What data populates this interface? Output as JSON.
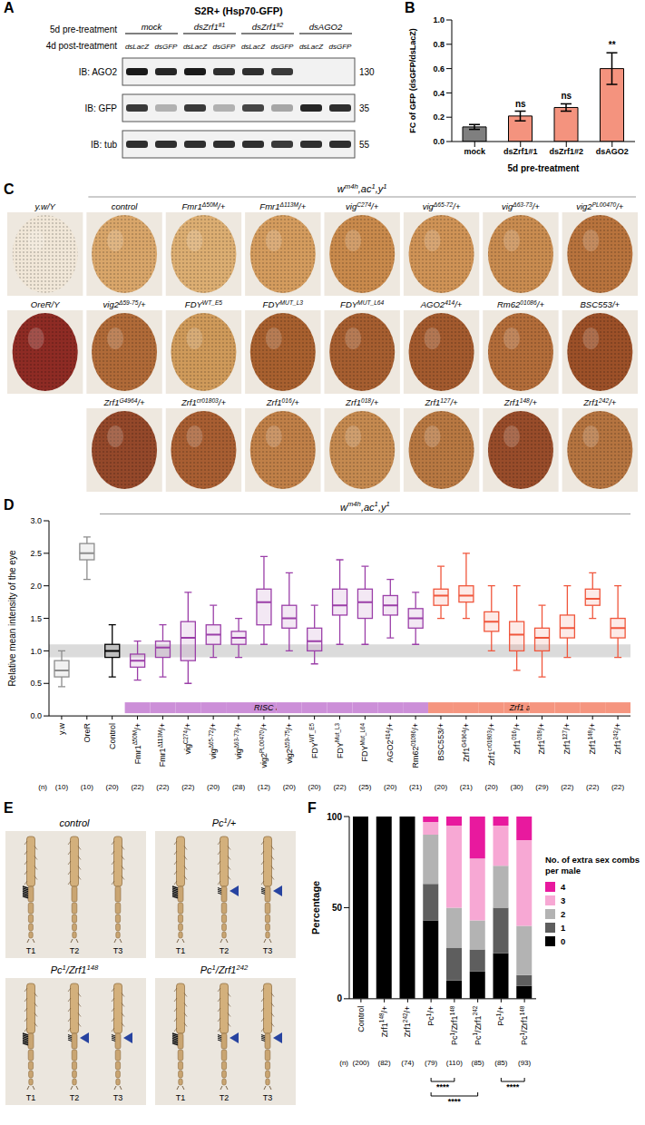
{
  "blot": {
    "panel": "A",
    "title": "S2R+ (Hsp70-GFP)",
    "pre_label": "5d pre-treatment",
    "post_label": "4d post-treatment",
    "groups": [
      [
        "mock"
      ],
      [
        "dsZrf1",
        "#1"
      ],
      [
        "dsZrf1",
        "#2"
      ],
      [
        "dsAGO2"
      ]
    ],
    "lanes": [
      "dsLacZ",
      "dsGFP",
      "dsLacZ",
      "dsGFP",
      "dsLacZ",
      "dsGFP",
      "dsLacZ",
      "dsGFP"
    ],
    "blots": [
      {
        "label": "IB: AGO2",
        "marker": 130,
        "bands": [
          1,
          0.95,
          1,
          0.9,
          0.9,
          0.85,
          0,
          0
        ]
      },
      {
        "label": "IB: GFP",
        "marker": 35,
        "bands": [
          0.85,
          0.3,
          0.85,
          0.3,
          0.8,
          0.35,
          0.95,
          0.9
        ]
      },
      {
        "label": "IB: tub",
        "marker": 55,
        "bands": [
          0.9,
          0.9,
          0.9,
          0.9,
          0.9,
          0.85,
          0.9,
          0.9
        ]
      }
    ]
  },
  "eyes": {
    "panel": "C",
    "header": [
      "w",
      "m4h",
      ",ac",
      "1",
      ",y",
      "1"
    ],
    "references": [
      {
        "label": [
          "y.w/Y"
        ],
        "color": "#f1e7d8"
      },
      {
        "label": [
          "OreR/Y"
        ],
        "color": "#8e2b24"
      }
    ],
    "rows": [
      [
        {
          "label": [
            "control"
          ],
          "color": "#d9a66a"
        },
        {
          "label": [
            "Fmr1",
            "Δ50M",
            "/+"
          ],
          "color": "#dcae72"
        },
        {
          "label": [
            "Fmr1",
            "Δ113M",
            "/+"
          ],
          "color": "#d49c5e"
        },
        {
          "label": [
            "vig",
            "C274",
            "/+"
          ],
          "color": "#c98a4c"
        },
        {
          "label": [
            "vig",
            "Δ65-72",
            "/+"
          ],
          "color": "#cf9356"
        },
        {
          "label": [
            "vig",
            "Δ63-73",
            "/+"
          ],
          "color": "#c98c50"
        },
        {
          "label": [
            "vig2",
            "PL00470",
            "/+"
          ],
          "color": "#b8733d"
        }
      ],
      [
        {
          "label": [
            "vig2",
            "Δ59-75",
            "/+"
          ],
          "color": "#b06a38"
        },
        {
          "label": [
            "FDY",
            "WT_E5"
          ],
          "color": "#cf9a5a"
        },
        {
          "label": [
            "FDY",
            "MUT_L3"
          ],
          "color": "#a8602f"
        },
        {
          "label": [
            "FDY",
            "MUT_L64"
          ],
          "color": "#a65e30"
        },
        {
          "label": [
            "AGO2",
            "414",
            "/+"
          ],
          "color": "#a35a2e"
        },
        {
          "label": [
            "Rm62",
            "01086",
            "/+"
          ],
          "color": "#b36d3a"
        },
        {
          "label": [
            "BSC553/+"
          ],
          "color": "#9c5028"
        }
      ],
      [
        {
          "label": [
            "Zrf1",
            "G4964",
            "/+"
          ],
          "color": "#94482a"
        },
        {
          "label": [
            "Zrf1",
            "cr01803",
            "/+"
          ],
          "color": "#a85e32"
        },
        {
          "label": [
            "Zrf1",
            "016",
            "/+"
          ],
          "color": "#c08048"
        },
        {
          "label": [
            "Zrf1",
            "018",
            "/+"
          ],
          "color": "#c58a50"
        },
        {
          "label": [
            "Zrf1",
            "127",
            "/+"
          ],
          "color": "#b87842"
        },
        {
          "label": [
            "Zrf1",
            "148",
            "/+"
          ],
          "color": "#984c2a"
        },
        {
          "label": [
            "Zrf1",
            "242",
            "/+"
          ],
          "color": "#b57440"
        }
      ]
    ]
  },
  "legs": {
    "panel": "E",
    "leg_labels": [
      "T1",
      "T2",
      "T3"
    ],
    "groups": [
      {
        "label": [
          "control"
        ],
        "extra_combs": [
          false,
          false,
          false
        ]
      },
      {
        "label": [
          "Pc",
          "1",
          "/+"
        ],
        "extra_combs": [
          false,
          true,
          true
        ]
      },
      {
        "label": [
          "Pc",
          "1",
          "/Zrf1",
          "148"
        ],
        "extra_combs": [
          false,
          true,
          true
        ]
      },
      {
        "label": [
          "Pc",
          "1",
          "/Zrf1",
          "242"
        ],
        "extra_combs": [
          false,
          true,
          true
        ]
      }
    ]
  },
  "chart_data": [
    {
      "panel": "B",
      "type": "bar",
      "categories": [
        "mock",
        "dsZrf1#1",
        "dsZrf1#2",
        "dsAGO2"
      ],
      "values": [
        0.12,
        0.21,
        0.28,
        0.6
      ],
      "errors": [
        0.02,
        0.04,
        0.03,
        0.13
      ],
      "significance": [
        null,
        "ns",
        "ns",
        "**"
      ],
      "colors": [
        "#7f7f7f",
        "#f4937e",
        "#f4937e",
        "#f4937e"
      ],
      "ylim": [
        0,
        1
      ],
      "yticks": [
        {
          "value": 0,
          "label": "0.0"
        },
        0.2,
        0.4,
        0.6,
        0.8,
        {
          "value": 1,
          "label": "1.0"
        }
      ],
      "y_label": "FC of GFP (dsGFP/dsLacZ)",
      "x_label": "5d pre-treatment"
    },
    {
      "panel": "D",
      "type": "box",
      "header": [
        "w",
        "m4h",
        ",ac",
        "1",
        ",y",
        "1"
      ],
      "header_span": [
        2,
        22
      ],
      "categories": [
        [
          "y.w"
        ],
        [
          "OreR"
        ],
        [
          "Control"
        ],
        [
          "Fmr1",
          "Δ50M",
          "/+"
        ],
        [
          "Fmr1",
          "Δ113M",
          "/+"
        ],
        [
          "vig",
          "C274",
          "/+"
        ],
        [
          "vig",
          "Δ65-72",
          "/+"
        ],
        [
          "vig",
          "Δ63-73",
          "/+"
        ],
        [
          "vig2",
          "PL00470",
          "/+"
        ],
        [
          "vig2",
          "Δ59-75",
          "/+"
        ],
        [
          "FDY",
          "WT_E5"
        ],
        [
          "FDY",
          "Mut_L3"
        ],
        [
          "FDY",
          "Mut_L64"
        ],
        [
          "AGO2",
          "414",
          "/+"
        ],
        [
          "Rm62",
          "01086",
          "/+"
        ],
        [
          "BSC553/+"
        ],
        [
          "Zrf1",
          "G4964",
          "/+"
        ],
        [
          "Zrf1",
          "cr01803",
          "/+"
        ],
        [
          "Zrf1",
          "016",
          "/+"
        ],
        [
          "Zrf1",
          "018",
          "/+"
        ],
        [
          "Zrf1",
          "127",
          "/+"
        ],
        [
          "Zrf1",
          "148",
          "/+"
        ],
        [
          "Zrf1",
          "242",
          "/+"
        ]
      ],
      "n_label": "(n)",
      "n": [
        "(10)",
        "(10)",
        "(20)",
        "(22)",
        "(22)",
        "(22)",
        "(20)",
        "(28)",
        "(12)",
        "(20)",
        "(20)",
        "(22)",
        "(25)",
        "(20)",
        "(21)",
        "(20)",
        "(21)",
        "(20)",
        "(30)",
        "(29)",
        "(22)",
        "(22)",
        "(22)"
      ],
      "min": [
        0.45,
        2.1,
        0.6,
        0.55,
        0.6,
        0.5,
        0.9,
        0.9,
        1.1,
        1.0,
        0.8,
        1.1,
        1.1,
        1.2,
        1.1,
        1.5,
        1.5,
        1.0,
        0.7,
        0.6,
        0.9,
        1.5,
        0.9
      ],
      "q1": [
        0.6,
        2.4,
        0.9,
        0.75,
        0.9,
        0.85,
        1.1,
        1.1,
        1.4,
        1.35,
        1.0,
        1.55,
        1.5,
        1.55,
        1.35,
        1.7,
        1.75,
        1.3,
        1.0,
        1.0,
        1.2,
        1.7,
        1.2
      ],
      "median": [
        0.7,
        2.5,
        1.0,
        0.85,
        1.05,
        1.2,
        1.25,
        1.2,
        1.75,
        1.5,
        1.15,
        1.7,
        1.75,
        1.7,
        1.5,
        1.85,
        1.85,
        1.45,
        1.25,
        1.2,
        1.35,
        1.8,
        1.35
      ],
      "q3": [
        0.85,
        2.65,
        1.1,
        0.95,
        1.15,
        1.45,
        1.4,
        1.3,
        1.95,
        1.7,
        1.35,
        1.95,
        1.95,
        1.85,
        1.65,
        1.95,
        2.0,
        1.6,
        1.45,
        1.35,
        1.55,
        1.95,
        1.5
      ],
      "max": [
        1.0,
        2.75,
        1.4,
        1.15,
        1.4,
        1.9,
        1.7,
        1.5,
        2.45,
        2.2,
        1.7,
        2.4,
        2.3,
        2.1,
        1.9,
        2.3,
        2.5,
        2.0,
        2.0,
        1.7,
        2.0,
        2.2,
        2.0
      ],
      "colors": [
        "#8c8c8c",
        "#8c8c8c",
        "#000000",
        "#9b3fa8",
        "#9b3fa8",
        "#9b3fa8",
        "#9b3fa8",
        "#9b3fa8",
        "#9b3fa8",
        "#9b3fa8",
        "#9b3fa8",
        "#9b3fa8",
        "#9b3fa8",
        "#9b3fa8",
        "#9b3fa8",
        "#f0563c",
        "#f0563c",
        "#f0563c",
        "#f0563c",
        "#f0563c",
        "#f0563c",
        "#f0563c",
        "#f0563c"
      ],
      "groups": [
        {
          "label": "RISC alleles",
          "from": 3,
          "to": 14,
          "color": "#cc8fd8"
        },
        {
          "label": "Zrf1 alleles",
          "from": 15,
          "to": 22,
          "color": "#f5957f"
        }
      ],
      "reference_band": [
        0.9,
        1.1
      ],
      "ylim": [
        0,
        3
      ],
      "yticks": [
        {
          "value": 0,
          "label": "0.0"
        },
        0.5,
        {
          "value": 1,
          "label": "1.0"
        },
        1.5,
        {
          "value": 2,
          "label": "2.0"
        },
        2.5,
        {
          "value": 3,
          "label": "3.0"
        }
      ],
      "y_label": "Relative mean intensity of the eye"
    },
    {
      "panel": "F",
      "type": "bar",
      "stacked": true,
      "categories": [
        [
          "Control"
        ],
        [
          "Zrf1",
          "148",
          "/+"
        ],
        [
          "Zrf1",
          "242",
          "/+"
        ],
        [
          "Pc",
          "1",
          "/+"
        ],
        [
          "Pc",
          "1",
          "/Zrf1",
          "148"
        ],
        [
          "Pc",
          "1",
          "/Zrf1",
          "242"
        ],
        [
          "Pc",
          "1",
          "/+"
        ],
        [
          "Pc",
          "1",
          "/Zrf1",
          "148"
        ]
      ],
      "n_label": "(n)",
      "n": [
        "(200)",
        "(82)",
        "(74)",
        "(79)",
        "(110)",
        "(85)",
        "(85)",
        "(93)"
      ],
      "series": [
        {
          "name": "0",
          "color": "#000000",
          "values": [
            100,
            100,
            100,
            43,
            10,
            15,
            25,
            7
          ]
        },
        {
          "name": "1",
          "color": "#5e5e5e",
          "values": [
            0,
            0,
            0,
            20,
            18,
            12,
            25,
            6
          ]
        },
        {
          "name": "2",
          "color": "#b3b3b3",
          "values": [
            0,
            0,
            0,
            27,
            22,
            16,
            23,
            27
          ]
        },
        {
          "name": "3",
          "color": "#f7a8d4",
          "values": [
            0,
            0,
            0,
            7,
            45,
            34,
            22,
            47
          ]
        },
        {
          "name": "4",
          "color": "#e8199e",
          "values": [
            0,
            0,
            0,
            3,
            5,
            23,
            5,
            13
          ]
        }
      ],
      "ylim": [
        0,
        100
      ],
      "yticks": [
        0,
        50,
        100
      ],
      "y_label": "Percentage",
      "legend_title": "No. of extra sex combs per male",
      "legend": "right",
      "comparisons": [
        {
          "from": 3,
          "to": 4,
          "label": "****"
        },
        {
          "from": 3,
          "to": 5,
          "label": "****"
        },
        {
          "from": 6,
          "to": 7,
          "label": "****"
        }
      ]
    }
  ]
}
